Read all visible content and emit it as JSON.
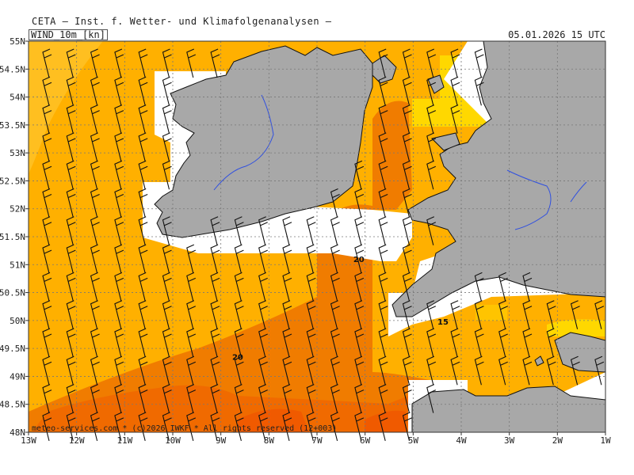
{
  "header": {
    "title": "CETA — Inst. f. Wetter- und Klimafolgenanalysen —"
  },
  "map": {
    "layer_label": "WIND_10m_[kn]",
    "timestamp": "05.01.2026 15 UTC",
    "footer": "meteo-services.com * (c)2026 IWKF * All rights reserved (12+003)",
    "lat_labels": [
      "55N",
      "54.5N",
      "54N",
      "53.5N",
      "53N",
      "52.5N",
      "52N",
      "51.5N",
      "51N",
      "50.5N",
      "50N",
      "49.5N",
      "49N",
      "48.5N",
      "48N"
    ],
    "lon_labels": [
      "13W",
      "12W",
      "11W",
      "10W",
      "9W",
      "8W",
      "7W",
      "6W",
      "5W",
      "4W",
      "3W",
      "2W",
      "1W"
    ],
    "contour_labels": [
      {
        "text": "20",
        "lon": -6.13,
        "lat": 51.05
      },
      {
        "text": "15",
        "lon": -4.38,
        "lat": 49.93
      },
      {
        "text": "20",
        "lon": -8.65,
        "lat": 49.3
      }
    ],
    "colors": {
      "speed_15_20": "#ffb000",
      "speed_20_25": "#f07c00",
      "speed_25_30": "#f05a00",
      "speed_10_15": "#ffd800",
      "land": "#a8a8a8",
      "coast": "#111111",
      "river": "#3050e0"
    }
  }
}
